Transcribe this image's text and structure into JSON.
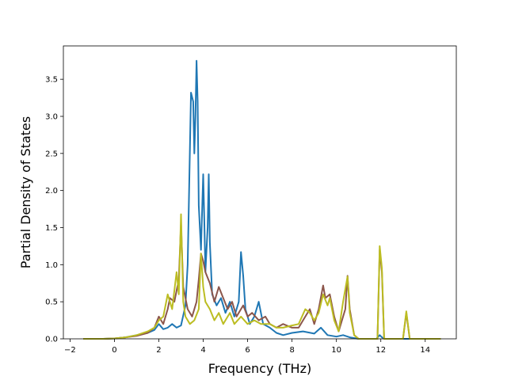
{
  "chart_data": {
    "type": "line",
    "title": "",
    "xlabel": "Frequency (THz)",
    "ylabel": "Partial Density of States",
    "xlim": [
      -2.3,
      15.4
    ],
    "ylim": [
      0,
      3.95
    ],
    "xticks": [
      -2,
      0,
      2,
      4,
      6,
      8,
      10,
      12,
      14
    ],
    "xtick_labels": [
      "−2",
      "0",
      "2",
      "4",
      "6",
      "8",
      "10",
      "12",
      "14"
    ],
    "yticks": [
      0,
      0.5,
      1.0,
      1.5,
      2.0,
      2.5,
      3.0,
      3.5
    ],
    "ytick_labels": [
      "0.0",
      "0.5",
      "1.0",
      "1.5",
      "2.0",
      "2.5",
      "3.0",
      "3.5"
    ],
    "grid": false,
    "legend": "none",
    "series": [
      {
        "color": "#1f77b4",
        "points": [
          [
            -1.4,
            0
          ],
          [
            -0.5,
            0
          ],
          [
            0,
            0.005
          ],
          [
            0.5,
            0.02
          ],
          [
            1,
            0.05
          ],
          [
            1.5,
            0.08
          ],
          [
            1.8,
            0.12
          ],
          [
            2.0,
            0.2
          ],
          [
            2.2,
            0.13
          ],
          [
            2.4,
            0.15
          ],
          [
            2.6,
            0.2
          ],
          [
            2.8,
            0.15
          ],
          [
            3.0,
            0.18
          ],
          [
            3.2,
            0.45
          ],
          [
            3.3,
            1.0
          ],
          [
            3.45,
            3.32
          ],
          [
            3.55,
            3.2
          ],
          [
            3.6,
            2.5
          ],
          [
            3.65,
            3.0
          ],
          [
            3.7,
            3.75
          ],
          [
            3.75,
            3.2
          ],
          [
            3.8,
            1.8
          ],
          [
            3.9,
            1.2
          ],
          [
            4.0,
            2.22
          ],
          [
            4.05,
            1.6
          ],
          [
            4.1,
            0.9
          ],
          [
            4.2,
            1.5
          ],
          [
            4.25,
            2.22
          ],
          [
            4.3,
            1.3
          ],
          [
            4.4,
            0.6
          ],
          [
            4.6,
            0.45
          ],
          [
            4.8,
            0.55
          ],
          [
            5.0,
            0.35
          ],
          [
            5.2,
            0.5
          ],
          [
            5.4,
            0.3
          ],
          [
            5.6,
            0.5
          ],
          [
            5.7,
            1.17
          ],
          [
            5.8,
            0.85
          ],
          [
            5.9,
            0.4
          ],
          [
            6.1,
            0.2
          ],
          [
            6.3,
            0.3
          ],
          [
            6.5,
            0.5
          ],
          [
            6.7,
            0.2
          ],
          [
            7.0,
            0.15
          ],
          [
            7.3,
            0.08
          ],
          [
            7.6,
            0.05
          ],
          [
            8.0,
            0.08
          ],
          [
            8.5,
            0.1
          ],
          [
            9.0,
            0.07
          ],
          [
            9.3,
            0.15
          ],
          [
            9.6,
            0.05
          ],
          [
            10.0,
            0.03
          ],
          [
            10.3,
            0.05
          ],
          [
            10.6,
            0.02
          ],
          [
            11.0,
            0.0
          ],
          [
            11.8,
            0.0
          ],
          [
            11.95,
            0.05
          ],
          [
            12.05,
            0.02
          ],
          [
            12.2,
            0
          ],
          [
            14.7,
            0
          ]
        ]
      },
      {
        "color": "#8c564b",
        "points": [
          [
            -1.4,
            0
          ],
          [
            -0.5,
            0
          ],
          [
            0,
            0.005
          ],
          [
            0.5,
            0.02
          ],
          [
            1,
            0.04
          ],
          [
            1.5,
            0.08
          ],
          [
            1.8,
            0.15
          ],
          [
            2.0,
            0.3
          ],
          [
            2.2,
            0.2
          ],
          [
            2.4,
            0.4
          ],
          [
            2.5,
            0.55
          ],
          [
            2.7,
            0.5
          ],
          [
            2.9,
            0.8
          ],
          [
            3.0,
            1.55
          ],
          [
            3.1,
            0.7
          ],
          [
            3.3,
            0.4
          ],
          [
            3.5,
            0.3
          ],
          [
            3.7,
            0.5
          ],
          [
            3.8,
            0.8
          ],
          [
            3.9,
            1.15
          ],
          [
            4.0,
            1.05
          ],
          [
            4.1,
            0.9
          ],
          [
            4.3,
            0.75
          ],
          [
            4.5,
            0.5
          ],
          [
            4.7,
            0.7
          ],
          [
            4.9,
            0.55
          ],
          [
            5.1,
            0.4
          ],
          [
            5.3,
            0.5
          ],
          [
            5.5,
            0.3
          ],
          [
            5.8,
            0.45
          ],
          [
            6.0,
            0.3
          ],
          [
            6.2,
            0.35
          ],
          [
            6.5,
            0.25
          ],
          [
            6.8,
            0.3
          ],
          [
            7.0,
            0.2
          ],
          [
            7.3,
            0.15
          ],
          [
            7.6,
            0.2
          ],
          [
            8.0,
            0.15
          ],
          [
            8.3,
            0.15
          ],
          [
            8.6,
            0.3
          ],
          [
            8.8,
            0.4
          ],
          [
            9.0,
            0.2
          ],
          [
            9.2,
            0.4
          ],
          [
            9.4,
            0.72
          ],
          [
            9.5,
            0.55
          ],
          [
            9.7,
            0.6
          ],
          [
            9.9,
            0.3
          ],
          [
            10.1,
            0.1
          ],
          [
            10.4,
            0.4
          ],
          [
            10.5,
            0.85
          ],
          [
            10.6,
            0.4
          ],
          [
            10.8,
            0.05
          ],
          [
            11.0,
            0
          ],
          [
            11.85,
            0
          ],
          [
            11.95,
            1.2
          ],
          [
            12.05,
            0.9
          ],
          [
            12.15,
            0
          ],
          [
            13.0,
            0
          ],
          [
            13.15,
            0.35
          ],
          [
            13.3,
            0
          ],
          [
            14.7,
            0
          ]
        ]
      },
      {
        "color": "#bcbd22",
        "points": [
          [
            -1.4,
            0
          ],
          [
            -0.5,
            0
          ],
          [
            0,
            0.005
          ],
          [
            0.5,
            0.02
          ],
          [
            1,
            0.05
          ],
          [
            1.5,
            0.1
          ],
          [
            1.8,
            0.15
          ],
          [
            2.0,
            0.25
          ],
          [
            2.2,
            0.3
          ],
          [
            2.4,
            0.6
          ],
          [
            2.6,
            0.4
          ],
          [
            2.8,
            0.9
          ],
          [
            2.9,
            0.6
          ],
          [
            3.0,
            1.68
          ],
          [
            3.1,
            0.5
          ],
          [
            3.2,
            0.3
          ],
          [
            3.4,
            0.2
          ],
          [
            3.6,
            0.25
          ],
          [
            3.8,
            0.4
          ],
          [
            3.9,
            1.15
          ],
          [
            4.0,
            0.7
          ],
          [
            4.1,
            0.5
          ],
          [
            4.3,
            0.4
          ],
          [
            4.5,
            0.25
          ],
          [
            4.7,
            0.35
          ],
          [
            4.9,
            0.2
          ],
          [
            5.2,
            0.35
          ],
          [
            5.4,
            0.2
          ],
          [
            5.7,
            0.3
          ],
          [
            6.0,
            0.2
          ],
          [
            6.3,
            0.25
          ],
          [
            6.6,
            0.2
          ],
          [
            7.0,
            0.2
          ],
          [
            7.3,
            0.15
          ],
          [
            7.6,
            0.15
          ],
          [
            8.0,
            0.18
          ],
          [
            8.3,
            0.2
          ],
          [
            8.6,
            0.4
          ],
          [
            8.8,
            0.35
          ],
          [
            9.0,
            0.25
          ],
          [
            9.2,
            0.35
          ],
          [
            9.4,
            0.6
          ],
          [
            9.6,
            0.45
          ],
          [
            9.7,
            0.55
          ],
          [
            9.9,
            0.25
          ],
          [
            10.1,
            0.1
          ],
          [
            10.3,
            0.5
          ],
          [
            10.5,
            0.84
          ],
          [
            10.6,
            0.35
          ],
          [
            10.8,
            0.05
          ],
          [
            11.0,
            0
          ],
          [
            11.85,
            0
          ],
          [
            11.95,
            1.25
          ],
          [
            12.05,
            0.95
          ],
          [
            12.15,
            0
          ],
          [
            13.0,
            0
          ],
          [
            13.15,
            0.37
          ],
          [
            13.3,
            0
          ],
          [
            14.7,
            0
          ]
        ]
      }
    ]
  }
}
